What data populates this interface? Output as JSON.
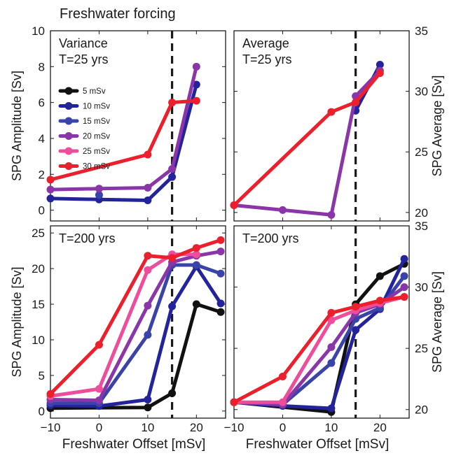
{
  "figure": {
    "title": "Freshwater forcing",
    "xlabel": "Freshwater Offset [mSv]",
    "colors": {
      "5 mSv": "#111111",
      "10 mSv": "#23249c",
      "15 mSv": "#3a43a8",
      "20 mSv": "#8a35a8",
      "25 mSv": "#ee4d9c",
      "30 mSv": "#ec1f2c",
      "threshold": "#1a1a1a"
    }
  },
  "chart_data": [
    {
      "id": "variance-25",
      "type": "line",
      "annotation": [
        "Variance",
        "T=25 yrs"
      ],
      "ylabel": "SPG Amplitude [Sv]",
      "ylabel_side": "left",
      "xlim": [
        -10,
        26
      ],
      "ylim": [
        -0.6,
        10
      ],
      "yticks": [
        0,
        2,
        4,
        6,
        8,
        10
      ],
      "xticks": [
        -10,
        0,
        10,
        20
      ],
      "show_xticklabels": false,
      "threshold_x": 15,
      "legend": {
        "placement": "upper-left",
        "entries": [
          "5 mSv",
          "10 mSv",
          "15 mSv",
          "20 mSv",
          "25 mSv",
          "30 mSv"
        ]
      },
      "series": [
        {
          "name": "10 mSv",
          "points": [
            [
              -10,
              0.65
            ],
            [
              0,
              0.6
            ],
            [
              10,
              0.55
            ],
            [
              15,
              1.85
            ],
            [
              20,
              7.0
            ]
          ]
        },
        {
          "name": "15 mSv",
          "points": [
            [
              0,
              0.85
            ]
          ]
        },
        {
          "name": "20 mSv",
          "points": [
            [
              -10,
              1.15
            ],
            [
              0,
              1.2
            ],
            [
              10,
              1.25
            ],
            [
              15,
              2.3
            ],
            [
              20,
              8.0
            ]
          ]
        },
        {
          "name": "30 mSv",
          "points": [
            [
              -10,
              1.7
            ],
            [
              10,
              3.1
            ],
            [
              15,
              6.0
            ],
            [
              20,
              6.1
            ]
          ]
        }
      ]
    },
    {
      "id": "average-25",
      "type": "line",
      "annotation": [
        "Average",
        "T=25 yrs"
      ],
      "ylabel": "SPG Average [Sv]",
      "ylabel_side": "right",
      "xlim": [
        -10,
        26
      ],
      "ylim": [
        19.3,
        35
      ],
      "yticks": [
        20,
        25,
        30,
        35
      ],
      "xticks": [
        -10,
        0,
        10,
        20
      ],
      "show_xticklabels": false,
      "threshold_x": 15,
      "series": [
        {
          "name": "10 mSv",
          "points": [
            [
              15,
              28.4
            ],
            [
              20,
              32.2
            ]
          ]
        },
        {
          "name": "20 mSv",
          "points": [
            [
              -10,
              20.6
            ],
            [
              0,
              20.2
            ],
            [
              10,
              19.8
            ],
            [
              15,
              29.6
            ],
            [
              20,
              31.7
            ]
          ]
        },
        {
          "name": "30 mSv",
          "points": [
            [
              -10,
              20.6
            ],
            [
              10,
              28.3
            ],
            [
              15,
              29.1
            ],
            [
              20,
              31.5
            ]
          ]
        }
      ]
    },
    {
      "id": "variance-200",
      "type": "line",
      "annotation": [
        "T=200 yrs"
      ],
      "ylabel": "SPG Amplitude [Sv]",
      "ylabel_side": "left",
      "xlim": [
        -10,
        26
      ],
      "ylim": [
        -1,
        26
      ],
      "yticks": [
        0,
        5,
        10,
        15,
        20,
        25
      ],
      "xticks": [
        -10,
        0,
        10,
        20
      ],
      "show_xticklabels": true,
      "threshold_x": 15,
      "series": [
        {
          "name": "5 mSv",
          "points": [
            [
              -10,
              0.4
            ],
            [
              10,
              0.5
            ],
            [
              15,
              2.5
            ],
            [
              20,
              15.0
            ],
            [
              25,
              13.9
            ]
          ]
        },
        {
          "name": "10 mSv",
          "points": [
            [
              -10,
              0.8
            ],
            [
              0,
              0.7
            ],
            [
              10,
              1.6
            ],
            [
              15,
              14.7
            ],
            [
              20,
              20.3
            ],
            [
              25,
              15.1
            ]
          ]
        },
        {
          "name": "15 mSv",
          "points": [
            [
              -10,
              1.1
            ],
            [
              0,
              1.1
            ],
            [
              10,
              10.7
            ],
            [
              15,
              20.5
            ],
            [
              20,
              20.5
            ],
            [
              25,
              19.3
            ]
          ]
        },
        {
          "name": "20 mSv",
          "points": [
            [
              -10,
              1.6
            ],
            [
              0,
              1.5
            ],
            [
              10,
              14.8
            ],
            [
              15,
              20.9
            ],
            [
              20,
              21.8
            ],
            [
              25,
              22.4
            ]
          ]
        },
        {
          "name": "25 mSv",
          "points": [
            [
              -10,
              2.1
            ],
            [
              0,
              3.1
            ],
            [
              10,
              19.8
            ],
            [
              15,
              22.0
            ],
            [
              20,
              22.0
            ]
          ]
        },
        {
          "name": "30 mSv",
          "points": [
            [
              -10,
              2.4
            ],
            [
              0,
              9.3
            ],
            [
              10,
              21.8
            ],
            [
              15,
              21.5
            ],
            [
              20,
              22.9
            ],
            [
              25,
              24.0
            ]
          ]
        }
      ]
    },
    {
      "id": "average-200",
      "type": "line",
      "annotation": [
        "T=200 yrs"
      ],
      "ylabel": "SPG Average [Sv]",
      "ylabel_side": "right",
      "xlim": [
        -10,
        26
      ],
      "ylim": [
        19.3,
        35
      ],
      "yticks": [
        20,
        25,
        30,
        35
      ],
      "xticks": [
        -10,
        0,
        10,
        20
      ],
      "show_xticklabels": true,
      "threshold_x": 15,
      "series": [
        {
          "name": "5 mSv",
          "points": [
            [
              -10,
              20.6
            ],
            [
              10,
              19.8
            ],
            [
              15,
              28.6
            ],
            [
              20,
              30.9
            ],
            [
              25,
              31.9
            ]
          ]
        },
        {
          "name": "10 mSv",
          "points": [
            [
              -10,
              20.6
            ],
            [
              0,
              20.3
            ],
            [
              10,
              20.1
            ],
            [
              15,
              26.5
            ],
            [
              20,
              28.2
            ],
            [
              25,
              32.3
            ]
          ]
        },
        {
          "name": "15 mSv",
          "points": [
            [
              -10,
              20.6
            ],
            [
              0,
              20.4
            ],
            [
              10,
              23.8
            ],
            [
              15,
              27.4
            ],
            [
              20,
              28.3
            ],
            [
              25,
              30.9
            ]
          ]
        },
        {
          "name": "20 mSv",
          "points": [
            [
              -10,
              20.6
            ],
            [
              0,
              20.4
            ],
            [
              10,
              25.1
            ],
            [
              15,
              27.9
            ],
            [
              20,
              28.6
            ],
            [
              25,
              30.0
            ]
          ]
        },
        {
          "name": "25 mSv",
          "points": [
            [
              -10,
              20.6
            ],
            [
              0,
              20.6
            ],
            [
              10,
              27.3
            ],
            [
              15,
              28.1
            ],
            [
              20,
              28.7
            ],
            [
              25,
              29.2
            ]
          ]
        },
        {
          "name": "30 mSv",
          "points": [
            [
              -10,
              20.6
            ],
            [
              0,
              22.7
            ],
            [
              10,
              27.9
            ],
            [
              15,
              28.4
            ],
            [
              20,
              28.9
            ],
            [
              25,
              29.2
            ]
          ]
        }
      ]
    }
  ]
}
